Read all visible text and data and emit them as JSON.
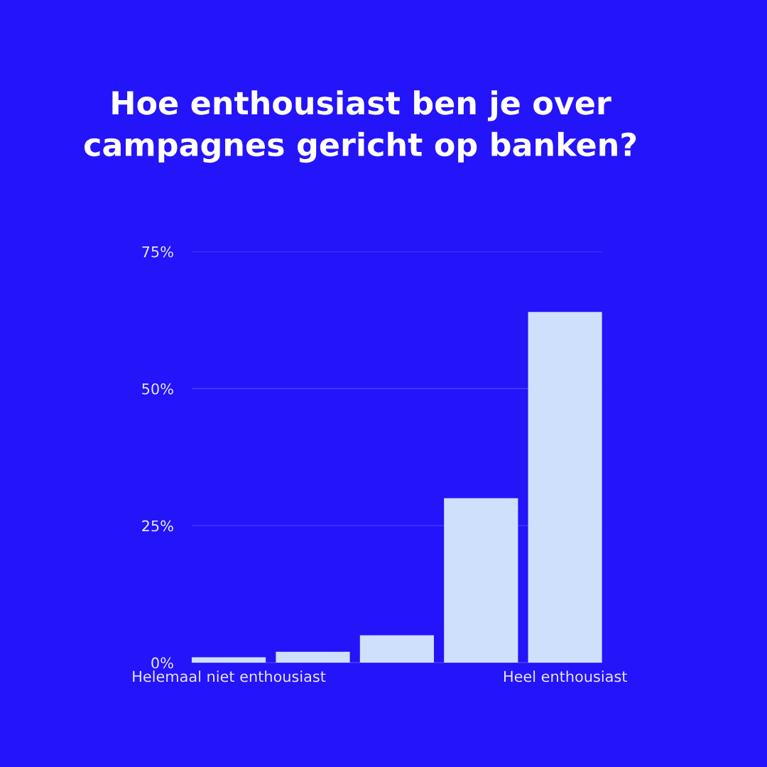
{
  "chart_data": {
    "type": "bar",
    "title": "Hoe enthousiast ben je over\ncampagnes gericht op banken?",
    "categories": [
      "Helemaal niet enthousiast",
      null,
      null,
      null,
      "Heel enthousiast"
    ],
    "values": [
      1,
      2,
      5,
      30,
      64
    ],
    "color": "#cfe0fd",
    "ylim": [
      0,
      75
    ],
    "yticks": [
      {
        "value": 0,
        "label": "0%"
      },
      {
        "value": 25,
        "label": "25%"
      },
      {
        "value": 50,
        "label": "50%"
      },
      {
        "value": 75,
        "label": "75%"
      }
    ],
    "grid": "y"
  }
}
